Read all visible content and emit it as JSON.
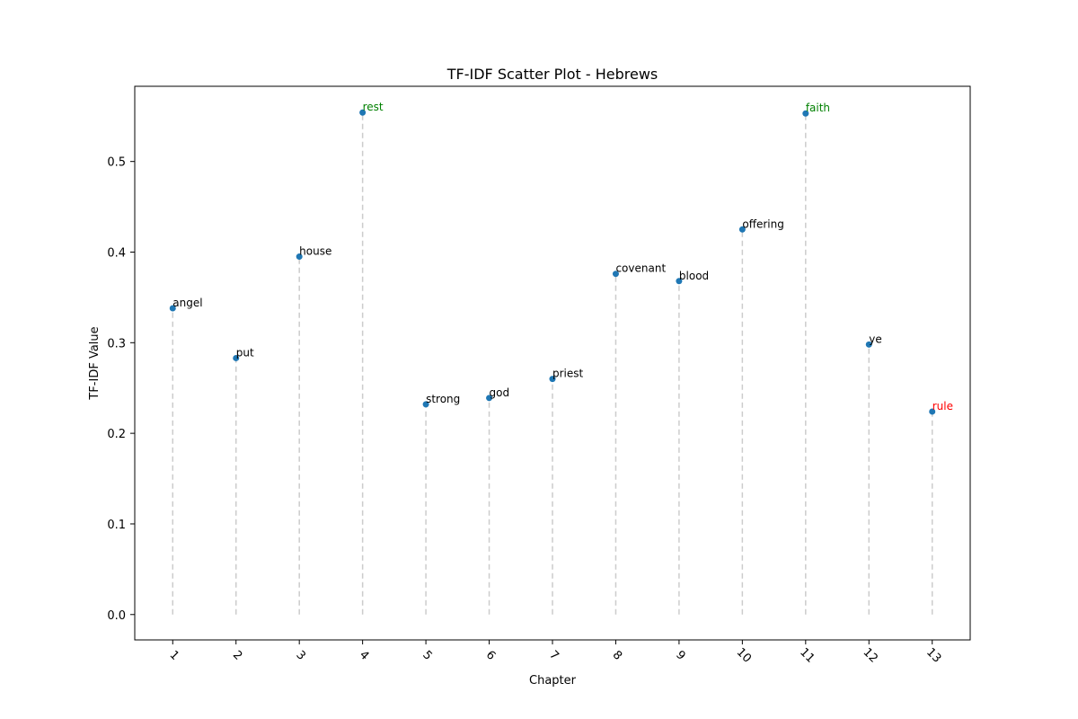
{
  "chart_data": {
    "type": "scatter",
    "title": "TF-IDF Scatter Plot - Hebrews",
    "xlabel": "Chapter",
    "ylabel": "TF-IDF Value",
    "x": [
      1,
      2,
      3,
      4,
      5,
      6,
      7,
      8,
      9,
      10,
      11,
      12,
      13
    ],
    "y": [
      0.338,
      0.283,
      0.395,
      0.554,
      0.232,
      0.239,
      0.26,
      0.376,
      0.368,
      0.425,
      0.553,
      0.298,
      0.224
    ],
    "labels": [
      "angel",
      "put",
      "house",
      "rest",
      "strong",
      "god",
      "priest",
      "covenant",
      "blood",
      "offering",
      "faith",
      "ye",
      "rule"
    ],
    "label_colors": [
      "#000000",
      "#000000",
      "#000000",
      "#008000",
      "#000000",
      "#000000",
      "#000000",
      "#000000",
      "#000000",
      "#000000",
      "#008000",
      "#000000",
      "#ff0000"
    ],
    "x_ticks": [
      "1",
      "2",
      "3",
      "4",
      "5",
      "6",
      "7",
      "8",
      "9",
      "10",
      "11",
      "12",
      "13"
    ],
    "y_ticks": [
      "0.0",
      "0.1",
      "0.2",
      "0.3",
      "0.4",
      "0.5"
    ],
    "ylim": [
      -0.028,
      0.583
    ],
    "xlim": [
      0.4,
      13.6
    ],
    "grid": false,
    "stems": true,
    "point_color": "#1f77b4",
    "stem_color": "#cccccc"
  }
}
